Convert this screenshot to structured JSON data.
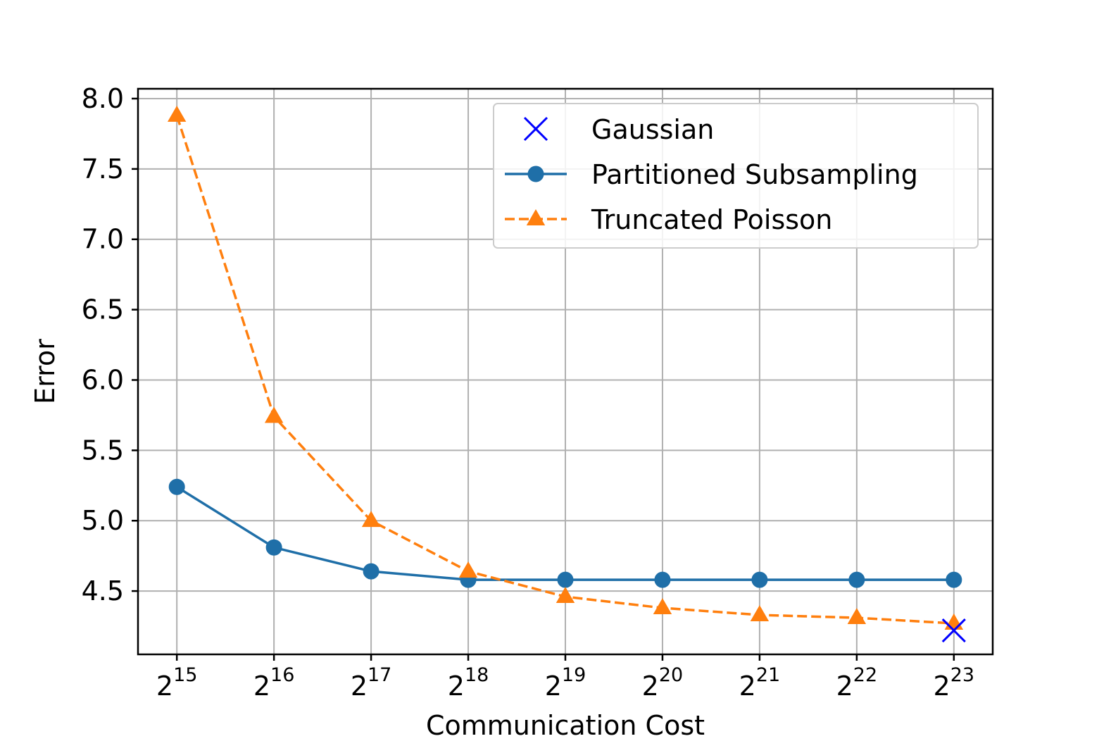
{
  "chart_data": {
    "type": "line",
    "title": "",
    "xlabel": "Communication Cost",
    "ylabel": "Error",
    "x_scale": "log2",
    "x": [
      32768,
      65536,
      131072,
      262144,
      524288,
      1048576,
      2097152,
      4194304,
      8388608
    ],
    "x_tick_labels": [
      {
        "base": "2",
        "exp": "15"
      },
      {
        "base": "2",
        "exp": "16"
      },
      {
        "base": "2",
        "exp": "17"
      },
      {
        "base": "2",
        "exp": "18"
      },
      {
        "base": "2",
        "exp": "19"
      },
      {
        "base": "2",
        "exp": "20"
      },
      {
        "base": "2",
        "exp": "21"
      },
      {
        "base": "2",
        "exp": "22"
      },
      {
        "base": "2",
        "exp": "23"
      }
    ],
    "ylim": [
      4.05,
      8.07
    ],
    "y_ticks": [
      "4.5",
      "5.0",
      "5.5",
      "6.0",
      "6.5",
      "7.0",
      "7.5",
      "8.0"
    ],
    "grid": true,
    "legend_position": "top-right",
    "series": [
      {
        "name": "Gaussian",
        "style": "marker-x",
        "color": "#0000ff",
        "x": [
          8388608
        ],
        "values": [
          4.22
        ]
      },
      {
        "name": "Partitioned Subsampling",
        "style": "solid-circle",
        "color": "#1f6fa8",
        "x": [
          32768,
          65536,
          131072,
          262144,
          524288,
          1048576,
          2097152,
          4194304,
          8388608
        ],
        "values": [
          5.24,
          4.81,
          4.64,
          4.58,
          4.58,
          4.58,
          4.58,
          4.58,
          4.58
        ]
      },
      {
        "name": "Truncated Poisson",
        "style": "dashed-triangle",
        "color": "#ff7f0e",
        "x": [
          32768,
          65536,
          131072,
          262144,
          524288,
          1048576,
          2097152,
          4194304,
          8388608
        ],
        "values": [
          7.88,
          5.74,
          5.0,
          4.64,
          4.46,
          4.38,
          4.33,
          4.31,
          4.27
        ]
      }
    ]
  }
}
